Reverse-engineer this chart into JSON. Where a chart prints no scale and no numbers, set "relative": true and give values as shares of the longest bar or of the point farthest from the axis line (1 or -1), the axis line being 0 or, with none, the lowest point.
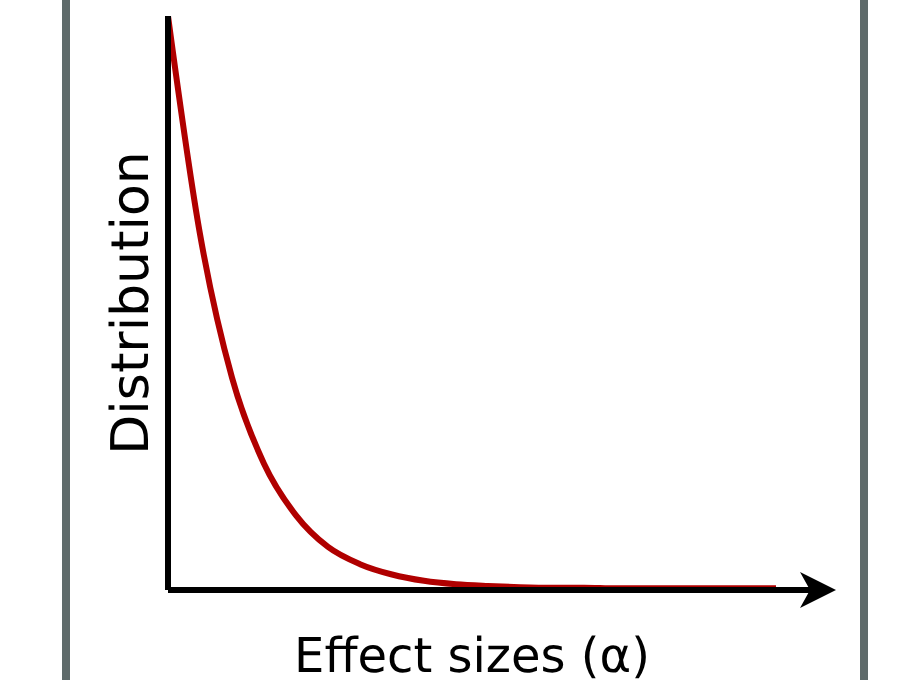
{
  "chart_data": {
    "type": "line",
    "relative": true,
    "xlabel": "Effect sizes (α)",
    "ylabel": "Distribution",
    "categories": [
      null,
      null,
      null,
      null,
      null,
      null,
      null,
      null,
      null,
      null,
      null,
      null,
      null,
      null,
      null,
      null,
      null,
      null,
      null,
      null
    ],
    "series": [
      {
        "color": "#b00000",
        "values": [
          1,
          0.62,
          0.37,
          0.22,
          0.13,
          0.075,
          0.045,
          0.027,
          0.016,
          0.01,
          0.007,
          0.005,
          0.004,
          0.004,
          0.003,
          0.003,
          0.003,
          0.003,
          0.003,
          0.003
        ]
      }
    ]
  }
}
